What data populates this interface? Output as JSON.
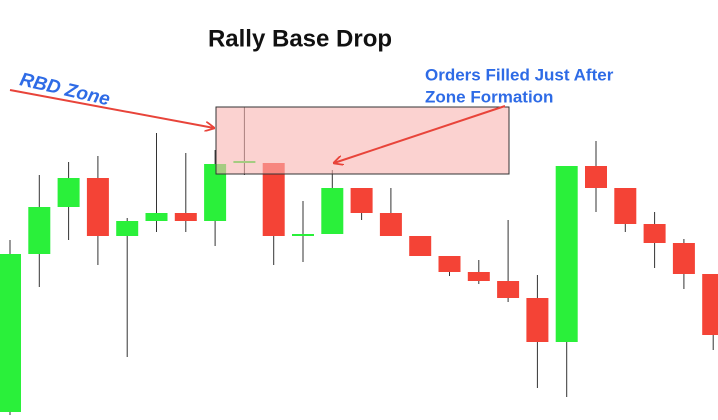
{
  "chart_data": {
    "type": "candlestick",
    "title": "Rally Base Drop",
    "annotations": [
      "RBD Zone",
      "Orders Filled Just After",
      "Zone Formation"
    ],
    "open": [
      8,
      166,
      213,
      242,
      184,
      199,
      207,
      199,
      257,
      257,
      184,
      186,
      232,
      207,
      184,
      164,
      148,
      139,
      122,
      78,
      254,
      232,
      196,
      177,
      146
    ],
    "high": [
      180,
      245,
      258,
      264,
      202,
      287,
      267,
      270,
      313,
      257,
      219,
      250,
      232,
      232,
      184,
      164,
      160,
      200,
      145,
      254,
      279,
      232,
      208,
      181,
      146
    ],
    "low": [
      5,
      133,
      180,
      155,
      63,
      188,
      188,
      174,
      245,
      155,
      158,
      186,
      200,
      184,
      164,
      144,
      136,
      118,
      32,
      23,
      208,
      188,
      152,
      131,
      70
    ],
    "close": [
      166,
      213,
      242,
      184,
      199,
      207,
      199,
      256,
      259,
      184,
      186,
      232,
      207,
      184,
      164,
      148,
      139,
      122,
      78,
      254,
      232,
      196,
      177,
      146,
      85
    ],
    "up_color": "#2af03a",
    "down_color": "#f44336",
    "ylim": [
      0,
      420
    ]
  }
}
